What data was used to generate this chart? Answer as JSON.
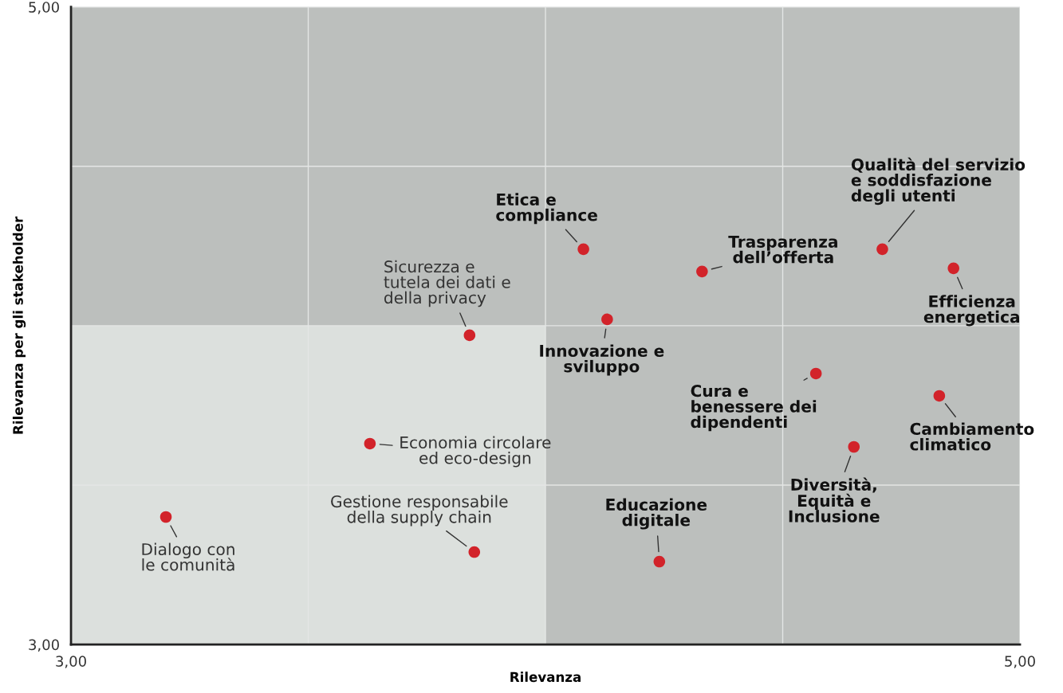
{
  "chart_data": {
    "type": "scatter",
    "xlabel": "Rilevanza",
    "ylabel": "Rilevanza per gli stakeholder",
    "xlim": [
      3,
      5
    ],
    "ylim": [
      3,
      5
    ],
    "xticks": [
      {
        "value": 3,
        "label": "3,00"
      },
      {
        "value": 3.5,
        "label": null
      },
      {
        "value": 4,
        "label": null
      },
      {
        "value": 4.5,
        "label": null
      },
      {
        "value": 5,
        "label": "5,00"
      }
    ],
    "yticks": [
      {
        "value": 3,
        "label": "3,00"
      },
      {
        "value": 3.5,
        "label": null
      },
      {
        "value": 4,
        "label": null
      },
      {
        "value": 4.5,
        "label": null
      },
      {
        "value": 5,
        "label": "5,00"
      }
    ],
    "grid": true,
    "marker": "circle",
    "series": [
      {
        "color": "#d2232a",
        "x": [
          4.71,
          4.86,
          4.33,
          4.08,
          4.13,
          3.84,
          4.57,
          4.83,
          4.65,
          3.63,
          3.2,
          3.85,
          4.24
        ],
        "values": [
          4.24,
          4.18,
          4.17,
          4.24,
          4.02,
          3.97,
          3.85,
          3.78,
          3.62,
          3.63,
          3.4,
          3.29,
          3.26
        ]
      }
    ],
    "annotations": [
      {
        "text": "Qualità del servizio\ne soddisfazione\ndegli utenti",
        "x": 4.71,
        "y": 4.24
      },
      {
        "text": "Efficienza\nenergetica",
        "x": 4.86,
        "y": 4.18
      },
      {
        "text": "Trasparenza\ndell’offerta",
        "x": 4.33,
        "y": 4.17
      },
      {
        "text": "Etica e\ncompliance",
        "x": 4.08,
        "y": 4.24
      },
      {
        "text": "Innovazione e\nsviluppo",
        "x": 4.13,
        "y": 4.02
      },
      {
        "text": "Sicurezza e\ntutela dei dati e\ndella privacy",
        "x": 3.84,
        "y": 3.97
      },
      {
        "text": "Cura e\nbenessere dei\ndipendenti",
        "x": 4.57,
        "y": 3.85
      },
      {
        "text": "Cambiamento\nclimatico",
        "x": 4.83,
        "y": 3.78
      },
      {
        "text": "Diversità,\nEquità e\nInclusione",
        "x": 4.65,
        "y": 3.62
      },
      {
        "text": "Economia circolare\ned eco-design",
        "x": 3.63,
        "y": 3.63
      },
      {
        "text": "Dialogo con\nle comunità",
        "x": 3.2,
        "y": 3.4
      },
      {
        "text": "Gestione responsabile\ndella supply chain",
        "x": 3.85,
        "y": 3.29
      },
      {
        "text": "Educazione\ndigitale",
        "x": 4.24,
        "y": 3.26
      }
    ]
  }
}
